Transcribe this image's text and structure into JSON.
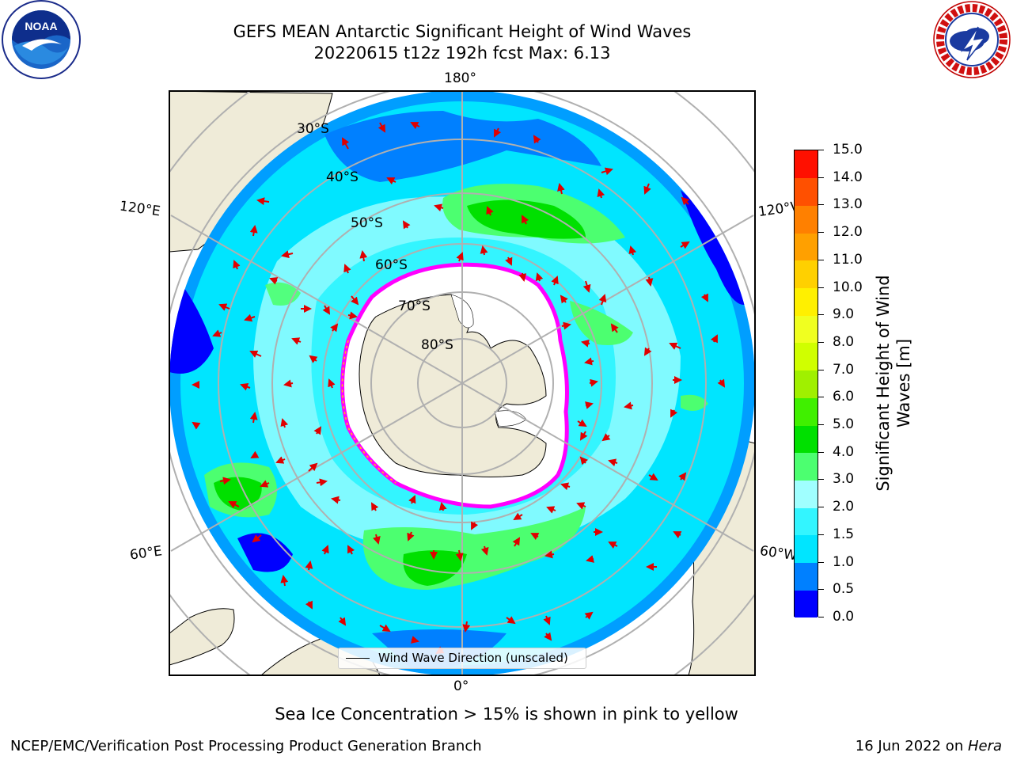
{
  "header": {
    "title_line1": "GEFS MEAN Antarctic Significant Height of Wind Waves",
    "title_line2": "20220615 t12z 192h fcst   Max: 6.13"
  },
  "logos": {
    "left": {
      "text": "NOAA",
      "ring_text": "NATIONAL OCEANIC AND ATMOSPHERIC ADMINISTRATION · U.S. DEPARTMENT OF COMMERCE"
    },
    "right": {
      "ring_text": "NATIONAL WEATHER SERVICE"
    }
  },
  "map": {
    "lon_labels": {
      "top": "180°",
      "bottom": "0°",
      "left_upper": "120°E",
      "left_lower": "60°E",
      "right_upper": "120°W",
      "right_lower": "60°W"
    },
    "lat_labels": [
      "30°S",
      "40°S",
      "50°S",
      "60°S",
      "70°S",
      "80°S"
    ],
    "legend": "Wind Wave Direction (unscaled)",
    "colors": {
      "land": "#efebd8",
      "ocean_low": "#0000ff",
      "ocean_mid": "#00e5ff",
      "ocean_high": "#4cff70",
      "sea_ice_edge": "#ff00ff",
      "arrow": "#e00000",
      "grid": "#b0b0b0"
    }
  },
  "colorbar": {
    "title": "Significant Height of Wind Waves [m]",
    "ticks": [
      "0.0",
      "0.5",
      "1.0",
      "1.5",
      "2.0",
      "3.0",
      "4.0",
      "5.0",
      "6.0",
      "7.0",
      "8.0",
      "9.0",
      "10.0",
      "11.0",
      "12.0",
      "13.0",
      "14.0",
      "15.0"
    ],
    "colors": [
      "#0000ff",
      "#0080ff",
      "#00e5ff",
      "#33f5ff",
      "#a0ffff",
      "#4cff70",
      "#00e000",
      "#40f000",
      "#a0f000",
      "#d0ff00",
      "#f0ff20",
      "#fff000",
      "#ffd000",
      "#ffa000",
      "#ff8000",
      "#ff5000",
      "#ff1000"
    ]
  },
  "footer": {
    "note": "Sea Ice Concentration > 15% is shown in pink to yellow",
    "credit": "NCEP/EMC/Verification Post Processing Product Generation Branch",
    "date": "16 Jun 2022 on ",
    "machine": "Hera"
  }
}
